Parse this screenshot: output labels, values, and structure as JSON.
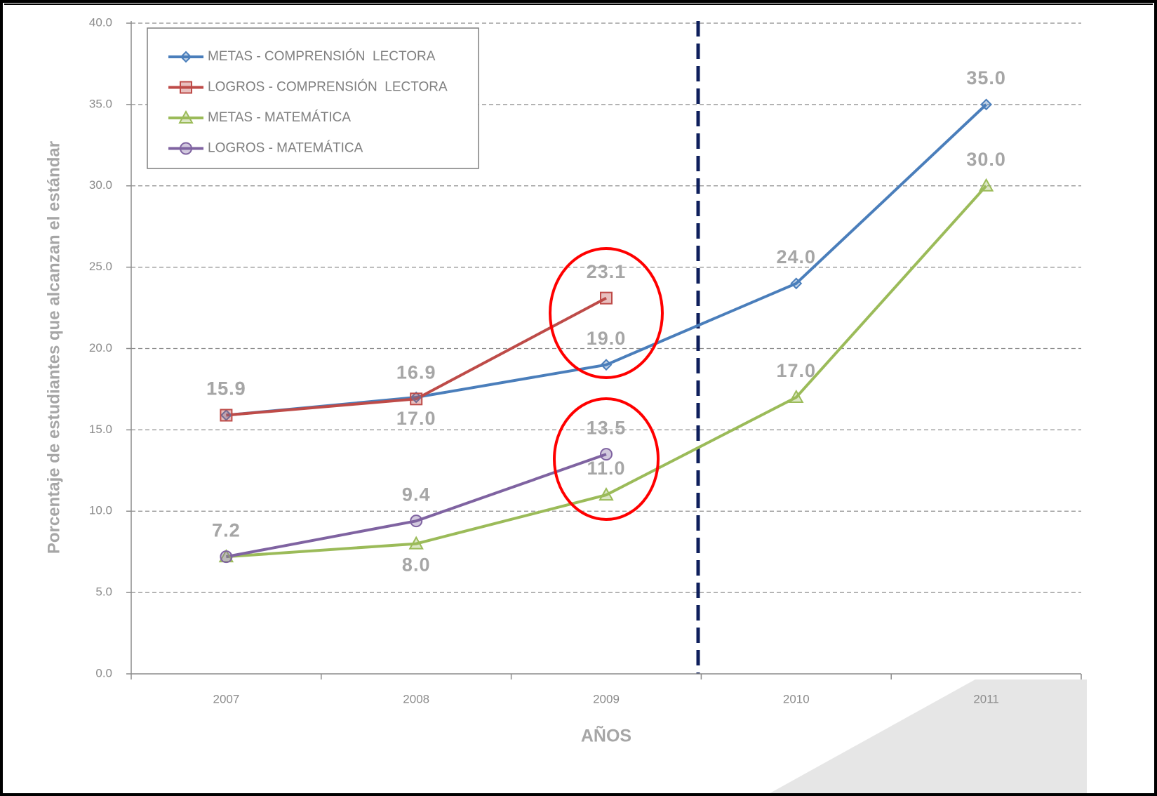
{
  "chart_data": {
    "type": "line",
    "y_label": "Porcentaje de estudiantes que alcanzan el estándar",
    "x_label": "AÑOS",
    "categories": [
      "2007",
      "2008",
      "2009",
      "2010",
      "2011"
    ],
    "series": [
      {
        "name": "METAS - COMPRENSIÓN  LECTORA",
        "color": "#4a7ebb",
        "marker": "diamond",
        "values": [
          15.9,
          17.0,
          19.0,
          24.0,
          35.0
        ]
      },
      {
        "name": "LOGROS - COMPRENSIÓN  LECTORA",
        "color": "#be4b48",
        "marker": "square",
        "values": [
          15.9,
          16.9,
          23.1,
          null,
          null
        ]
      },
      {
        "name": "METAS - MATEMÁTICA",
        "color": "#9bbb59",
        "marker": "triangle",
        "values": [
          7.2,
          8.0,
          11.0,
          17.0,
          30.0
        ]
      },
      {
        "name": "LOGROS - MATEMÁTICA",
        "color": "#7f63a1",
        "marker": "circle",
        "values": [
          7.2,
          9.4,
          13.5,
          null,
          null
        ]
      }
    ],
    "value_labels": [
      [
        "15.9",
        "17.0",
        "19.0",
        "24.0",
        "35.0"
      ],
      [
        "15.9",
        "16.9",
        "23.1",
        null,
        null
      ],
      [
        "7.2",
        "8.0",
        "11.0",
        "17.0",
        "30.0"
      ],
      [
        "7.2",
        "9.4",
        "13.5",
        null,
        null
      ]
    ],
    "ylim": [
      0,
      40
    ],
    "yticks": [
      {
        "value": 0,
        "label": "0.0"
      },
      {
        "value": 5,
        "label": "5.0"
      },
      {
        "value": 10,
        "label": "10.0"
      },
      {
        "value": 15,
        "label": "15.0"
      },
      {
        "value": 20,
        "label": "20.0"
      },
      {
        "value": 25,
        "label": "25.0"
      },
      {
        "value": 30,
        "label": "30.0"
      },
      {
        "value": 35,
        "label": "35.0"
      },
      {
        "value": 40,
        "label": "40.0"
      }
    ],
    "grid": true,
    "legend": "upper left"
  }
}
